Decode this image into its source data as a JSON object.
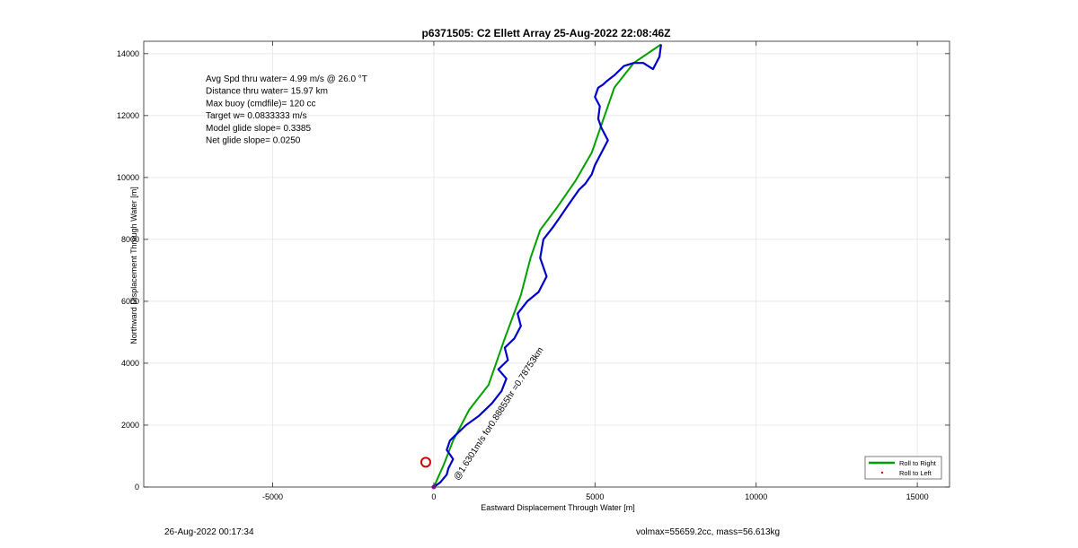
{
  "chart_data": {
    "type": "line",
    "title": "p6371505: C2 Ellett Array 25-Aug-2022 22:08:46Z",
    "xlabel": "Eastward Displacement Through Water [m]",
    "ylabel": "Northward Displacement Through Water [m]",
    "xlim": [
      -9000,
      16000
    ],
    "ylim": [
      0,
      14400
    ],
    "xticks": [
      -5000,
      0,
      5000,
      10000,
      15000
    ],
    "yticks": [
      0,
      2000,
      4000,
      6000,
      8000,
      10000,
      12000,
      14000
    ],
    "grid": true,
    "legend_position": "bottom-right",
    "legend": [
      {
        "label": "Roll to Right",
        "color": "#00a000",
        "marker": "line"
      },
      {
        "label": "Roll to Left",
        "color": "#ff0000",
        "marker": "dot"
      }
    ],
    "stats": [
      "Avg Spd thru water=  4.99 m/s @  26.0 °T",
      "Distance thru water= 15.97 km",
      "Max buoy (cmdfile)= 120 cc",
      "Target w= 0.0833333 m/s",
      "Model glide slope= 0.3385",
      "Net glide slope= 0.0250"
    ],
    "annotation": "@1.6301m/s for0.88855hr =0.78753km",
    "series": [
      {
        "color": "#00a000",
        "x": [
          0,
          300,
          600,
          1100,
          1700,
          2200,
          2700,
          3000,
          3300,
          3800,
          4400,
          4900,
          5300,
          5600,
          6200,
          7050
        ],
        "y": [
          0,
          700,
          1500,
          2500,
          3300,
          4800,
          6200,
          7400,
          8300,
          9000,
          9900,
          10800,
          12000,
          12900,
          13700,
          14300
        ]
      },
      {
        "color": "#0000c8",
        "x": [
          0,
          200,
          400,
          450,
          500,
          600,
          400,
          500,
          700,
          1000,
          1400,
          1800,
          2100,
          2250,
          2000,
          2300,
          2200,
          2500,
          2700,
          2600,
          2900,
          3250,
          3500,
          3300,
          3400,
          3700,
          3900,
          4100,
          4300,
          4500,
          4700,
          4900,
          5000,
          5200,
          5400,
          5200,
          5100,
          5150,
          5000,
          5100,
          5250,
          5350,
          5600,
          5900,
          6200,
          6500,
          6800,
          7000,
          7050
        ],
        "y": [
          0,
          150,
          400,
          600,
          700,
          900,
          1200,
          1500,
          1700,
          2000,
          2300,
          2700,
          3100,
          3500,
          3800,
          4100,
          4500,
          4800,
          5200,
          5600,
          6000,
          6300,
          6800,
          7400,
          8000,
          8400,
          8700,
          9000,
          9300,
          9600,
          9800,
          10100,
          10400,
          10800,
          11200,
          11600,
          11900,
          12300,
          12600,
          12900,
          13000,
          13100,
          13300,
          13600,
          13700,
          13700,
          13500,
          13900,
          14300
        ]
      }
    ],
    "markers": [
      {
        "type": "circle",
        "x": -250,
        "y": 800,
        "color": "#d00000"
      },
      {
        "type": "point",
        "x": 0,
        "y": 0,
        "color": "#a000c0"
      }
    ]
  },
  "footer": {
    "left": "26-Aug-2022 00:17:34",
    "right": "volmax=55659.2cc, mass=56.613kg"
  }
}
